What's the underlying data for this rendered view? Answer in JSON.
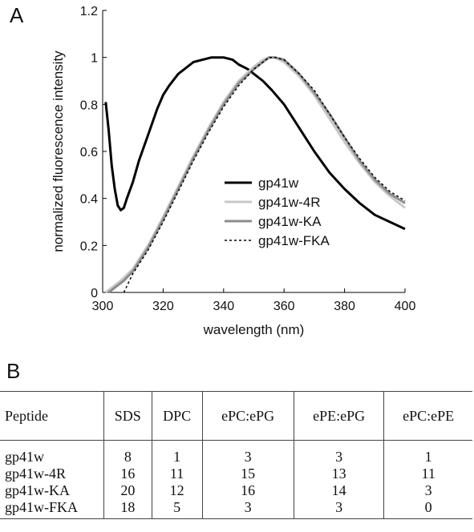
{
  "panel_a_label": "A",
  "panel_b_label": "B",
  "chart_data": {
    "type": "line",
    "xlabel": "wavelength (nm)",
    "ylabel": "normalized fluorescence intensity",
    "xlim": [
      300,
      400
    ],
    "ylim": [
      0,
      1.2
    ],
    "xticks": [
      "300",
      "320",
      "340",
      "360",
      "380",
      "400"
    ],
    "yticks": [
      "0",
      "0.2",
      "0.4",
      "0.6",
      "0.8",
      "1",
      "1.2"
    ],
    "grid": false,
    "legend_position": "center-right",
    "series": [
      {
        "name": "gp41w",
        "color": "#000000",
        "dash": "solid",
        "x": [
          301,
          302,
          303,
          304,
          305,
          306,
          307,
          308,
          310,
          312,
          315,
          318,
          320,
          322,
          325,
          328,
          330,
          333,
          336,
          340,
          343,
          345,
          348,
          350,
          353,
          356,
          360,
          365,
          370,
          375,
          380,
          385,
          390,
          395,
          400
        ],
        "y": [
          0.81,
          0.69,
          0.54,
          0.44,
          0.37,
          0.35,
          0.36,
          0.4,
          0.47,
          0.56,
          0.67,
          0.78,
          0.84,
          0.88,
          0.93,
          0.96,
          0.98,
          0.99,
          1.0,
          1.0,
          0.99,
          0.97,
          0.95,
          0.93,
          0.9,
          0.86,
          0.8,
          0.7,
          0.6,
          0.51,
          0.44,
          0.38,
          0.33,
          0.3,
          0.27
        ]
      },
      {
        "name": "gp41w-4R",
        "color": "#c8c8c8",
        "dash": "solid",
        "x": [
          301,
          303,
          306,
          310,
          315,
          320,
          325,
          330,
          335,
          340,
          345,
          350,
          353,
          355,
          357,
          360,
          365,
          370,
          375,
          380,
          385,
          390,
          395,
          400
        ],
        "y": [
          0.0,
          0.02,
          0.05,
          0.1,
          0.2,
          0.32,
          0.45,
          0.58,
          0.7,
          0.81,
          0.9,
          0.96,
          0.99,
          1.0,
          1.0,
          0.98,
          0.92,
          0.84,
          0.74,
          0.64,
          0.55,
          0.47,
          0.41,
          0.36
        ]
      },
      {
        "name": "gp41w-KA",
        "color": "#8c8c8c",
        "dash": "solid",
        "x": [
          302,
          304,
          307,
          310,
          315,
          320,
          325,
          330,
          335,
          340,
          345,
          350,
          353,
          355,
          357,
          360,
          365,
          370,
          375,
          380,
          385,
          390,
          395,
          400
        ],
        "y": [
          0.0,
          0.02,
          0.05,
          0.09,
          0.19,
          0.31,
          0.44,
          0.57,
          0.69,
          0.8,
          0.89,
          0.95,
          0.98,
          1.0,
          1.0,
          0.99,
          0.93,
          0.85,
          0.76,
          0.66,
          0.56,
          0.48,
          0.42,
          0.38
        ]
      },
      {
        "name": "gp41w-FKA",
        "color": "#000000",
        "dash": "dotted",
        "x": [
          307,
          310,
          315,
          320,
          325,
          330,
          335,
          340,
          345,
          350,
          353,
          355,
          357,
          360,
          365,
          370,
          375,
          380,
          385,
          390,
          395,
          400
        ],
        "y": [
          0.0,
          0.08,
          0.18,
          0.3,
          0.43,
          0.56,
          0.68,
          0.79,
          0.88,
          0.95,
          0.98,
          1.0,
          1.0,
          0.99,
          0.93,
          0.86,
          0.76,
          0.66,
          0.57,
          0.49,
          0.43,
          0.39
        ]
      }
    ]
  },
  "table": {
    "headers": [
      "Peptide",
      "SDS",
      "DPC",
      "ePC:ePG",
      "ePE:ePG",
      "ePC:ePE"
    ],
    "rows": [
      [
        "gp41w",
        "8",
        "1",
        "3",
        "3",
        "1"
      ],
      [
        "gp41w-4R",
        "16",
        "11",
        "15",
        "13",
        "11"
      ],
      [
        "gp41w-KA",
        "20",
        "12",
        "16",
        "14",
        "3"
      ],
      [
        "gp41w-FKA",
        "18",
        "5",
        "3",
        "3",
        "0"
      ]
    ]
  }
}
